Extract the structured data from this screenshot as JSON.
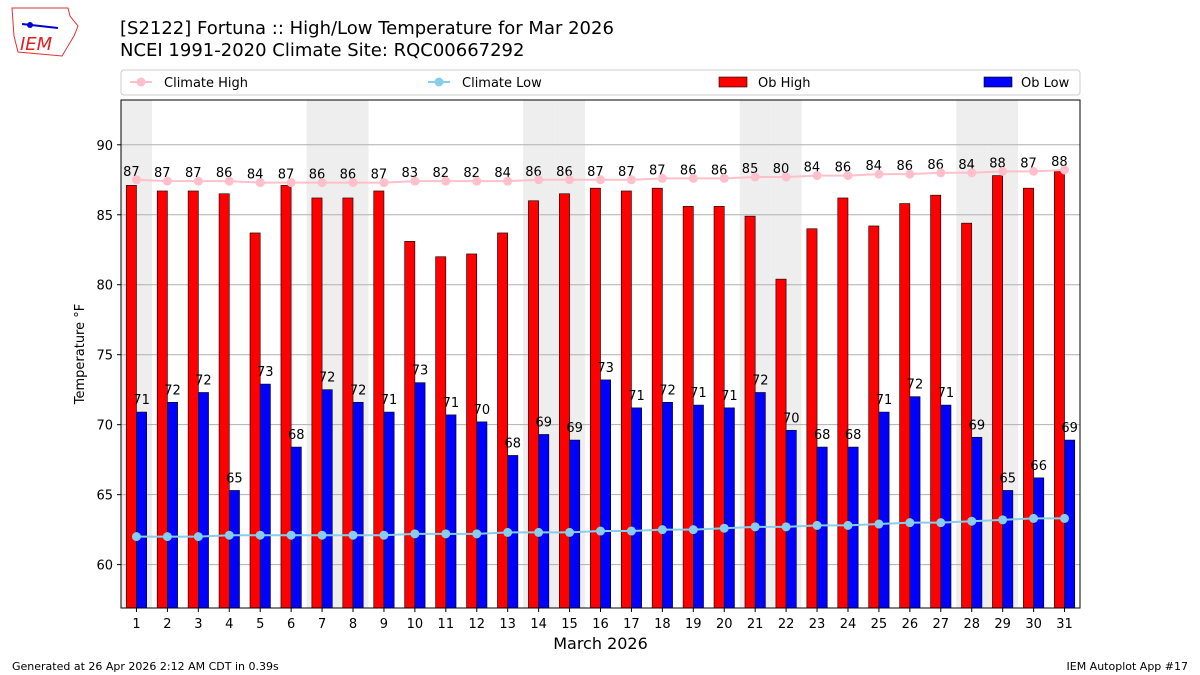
{
  "header": {
    "title": "[S2122] Fortuna :: High/Low Temperature for Mar 2026",
    "subtitle": "NCEI 1991-2020 Climate Site: RQC00667292",
    "logo_text": "IEM"
  },
  "footer": {
    "left": "Generated at 26 Apr 2026 2:12 AM CDT in 0.39s",
    "right": "IEM Autoplot App #17"
  },
  "colors": {
    "ob_high": "#ff0000",
    "ob_low": "#0000ff",
    "climate_high": "#ffc0cb",
    "climate_low": "#87ceeb",
    "weekend": "#eeeeee"
  },
  "chart_data": {
    "type": "bar",
    "title": "[S2122] Fortuna :: High/Low Temperature for Mar 2026",
    "xlabel": "March 2026",
    "ylabel": "Temperature °F",
    "ylim": [
      56.9,
      93.2
    ],
    "yticks": [
      60,
      65,
      70,
      75,
      80,
      85,
      90
    ],
    "grid": true,
    "legend": "top",
    "categories": [
      "1",
      "2",
      "3",
      "4",
      "5",
      "6",
      "7",
      "8",
      "9",
      "10",
      "11",
      "12",
      "13",
      "14",
      "15",
      "16",
      "17",
      "18",
      "19",
      "20",
      "21",
      "22",
      "23",
      "24",
      "25",
      "26",
      "27",
      "28",
      "29",
      "30",
      "31"
    ],
    "weekend_days": [
      1,
      7,
      8,
      14,
      15,
      21,
      22,
      28,
      29
    ],
    "series": [
      {
        "name": "Ob High",
        "type": "bar",
        "values": [
          87.1,
          86.7,
          86.7,
          86.5,
          83.7,
          87.1,
          86.2,
          86.2,
          86.7,
          83.1,
          82.0,
          82.2,
          83.7,
          86.0,
          86.5,
          86.9,
          86.7,
          86.9,
          85.6,
          85.6,
          84.9,
          80.4,
          84.0,
          86.2,
          84.2,
          85.8,
          86.4,
          84.4,
          87.8,
          86.9,
          88.1
        ],
        "labels": [
          "87",
          "87",
          "87",
          "86",
          "84",
          "87",
          "86",
          "86",
          "87",
          "83",
          "82",
          "82",
          "84",
          "86",
          "86",
          "87",
          "87",
          "87",
          "86",
          "86",
          "85",
          "80",
          "84",
          "86",
          "84",
          "86",
          "86",
          "84",
          "88",
          "87",
          "88"
        ]
      },
      {
        "name": "Ob Low",
        "type": "bar",
        "values": [
          70.9,
          71.6,
          72.3,
          65.3,
          72.9,
          68.4,
          72.5,
          71.6,
          70.9,
          73.0,
          70.7,
          70.2,
          67.8,
          69.3,
          68.9,
          73.2,
          71.2,
          71.6,
          71.4,
          71.2,
          72.3,
          69.6,
          68.4,
          68.4,
          70.9,
          72.0,
          71.4,
          69.1,
          65.3,
          66.2,
          68.9
        ],
        "labels": [
          "71",
          "72",
          "72",
          "65",
          "73",
          "68",
          "72",
          "72",
          "71",
          "73",
          "71",
          "70",
          "68",
          "69",
          "69",
          "73",
          "71",
          "72",
          "71",
          "71",
          "72",
          "70",
          "68",
          "68",
          "71",
          "72",
          "71",
          "69",
          "65",
          "66",
          "69"
        ]
      },
      {
        "name": "Climate High",
        "type": "line",
        "values": [
          87.5,
          87.4,
          87.4,
          87.4,
          87.3,
          87.3,
          87.3,
          87.3,
          87.3,
          87.4,
          87.4,
          87.4,
          87.4,
          87.5,
          87.5,
          87.5,
          87.5,
          87.6,
          87.6,
          87.6,
          87.7,
          87.7,
          87.8,
          87.8,
          87.9,
          87.9,
          88.0,
          88.0,
          88.1,
          88.1,
          88.2
        ]
      },
      {
        "name": "Climate Low",
        "type": "line",
        "values": [
          62.0,
          62.0,
          62.0,
          62.1,
          62.1,
          62.1,
          62.1,
          62.1,
          62.1,
          62.2,
          62.2,
          62.2,
          62.3,
          62.3,
          62.3,
          62.4,
          62.4,
          62.5,
          62.5,
          62.6,
          62.7,
          62.7,
          62.8,
          62.8,
          62.9,
          63.0,
          63.0,
          63.1,
          63.2,
          63.3,
          63.3
        ]
      }
    ]
  }
}
